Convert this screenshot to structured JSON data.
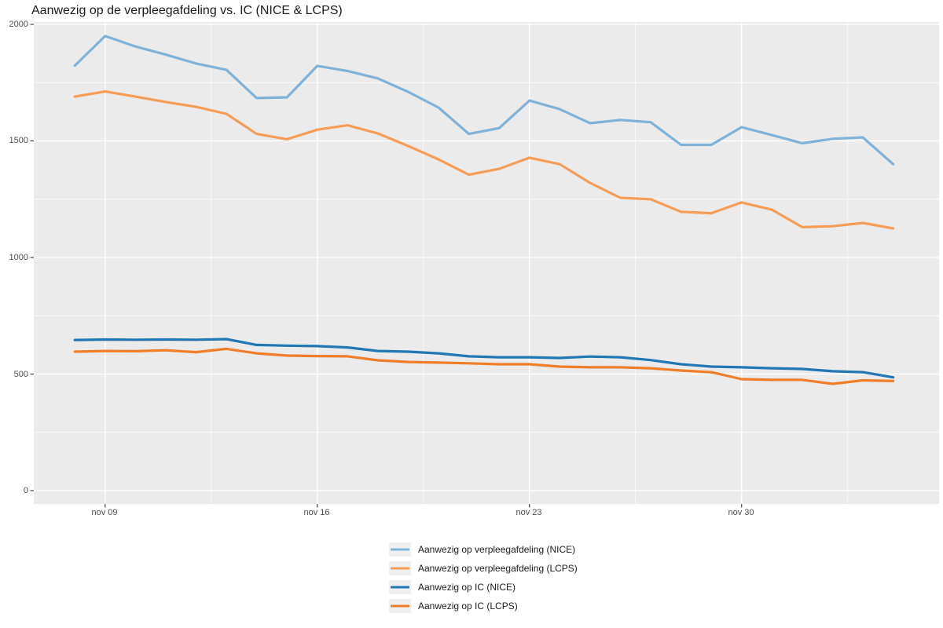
{
  "title": "Aanwezig op de verpleegafdeling vs. IC (NICE & LCPS)",
  "chart_data": {
    "type": "line",
    "title": "Aanwezig op de verpleegafdeling vs. IC (NICE & LCPS)",
    "xlabel": "",
    "ylabel": "",
    "ylim": [
      0,
      2000
    ],
    "grid": "major-and-minor-white-on-gray",
    "legend_position": "bottom",
    "panel_bg": "#EBEBEB",
    "gridline_color": "#FFFFFF",
    "axis_text_color": "#4D4D4D",
    "y_tick_labels": [
      "2000",
      "1500",
      "1000",
      "500",
      "0"
    ],
    "y_tick_values": [
      2000,
      1500,
      1000,
      500,
      0
    ],
    "x_tick_labels": [
      "nov 09",
      "nov 16",
      "nov 23",
      "nov 30"
    ],
    "x_tick_day_indices": [
      1,
      8,
      15,
      22
    ],
    "dates": [
      "nov 08",
      "nov 09",
      "nov 10",
      "nov 11",
      "nov 12",
      "nov 13",
      "nov 14",
      "nov 15",
      "nov 16",
      "nov 17",
      "nov 18",
      "nov 19",
      "nov 20",
      "nov 21",
      "nov 22",
      "nov 23",
      "nov 24",
      "nov 25",
      "nov 26",
      "nov 27",
      "nov 28",
      "nov 29",
      "nov 30",
      "dec 01",
      "dec 02",
      "dec 03",
      "dec 04",
      "dec 05"
    ],
    "series": [
      {
        "name": "Aanwezig op verpleegafdeling (NICE)",
        "color": "#7FB2D8",
        "values": [
          1823,
          1950,
          1905,
          1870,
          1832,
          1805,
          1684,
          1687,
          1822,
          1800,
          1768,
          1710,
          1643,
          1530,
          1555,
          1673,
          1636,
          1576,
          1590,
          1580,
          1483,
          1483,
          1559,
          1525,
          1490,
          1509,
          1515,
          1400
        ]
      },
      {
        "name": "Aanwezig op verpleegafdeling (LCPS)",
        "color": "#F79C55",
        "values": [
          1690,
          1712,
          1690,
          1667,
          1646,
          1616,
          1530,
          1507,
          1548,
          1567,
          1532,
          1478,
          1421,
          1355,
          1380,
          1428,
          1400,
          1320,
          1256,
          1250,
          1196,
          1190,
          1236,
          1205,
          1130,
          1134,
          1148,
          1125
        ]
      },
      {
        "name": "Aanwezig op IC (NICE)",
        "color": "#2077B4",
        "values": [
          646,
          648,
          647,
          648,
          647,
          650,
          625,
          622,
          620,
          614,
          599,
          596,
          589,
          576,
          572,
          572,
          569,
          575,
          572,
          560,
          542,
          532,
          529,
          525,
          522,
          512,
          508,
          486
        ]
      },
      {
        "name": "Aanwezig op IC (LCPS)",
        "color": "#F07E28",
        "values": [
          596,
          599,
          598,
          602,
          594,
          608,
          589,
          579,
          577,
          576,
          559,
          552,
          549,
          546,
          542,
          542,
          532,
          529,
          529,
          525,
          515,
          508,
          478,
          475,
          475,
          458,
          473,
          470
        ]
      }
    ]
  },
  "legend": {
    "items": [
      {
        "label": "Aanwezig op verpleegafdeling (NICE)",
        "color": "#7FB2D8"
      },
      {
        "label": "Aanwezig op verpleegafdeling (LCPS)",
        "color": "#F79C55"
      },
      {
        "label": "Aanwezig op IC (NICE)",
        "color": "#2077B4"
      },
      {
        "label": "Aanwezig op IC (LCPS)",
        "color": "#F07E28"
      }
    ]
  }
}
